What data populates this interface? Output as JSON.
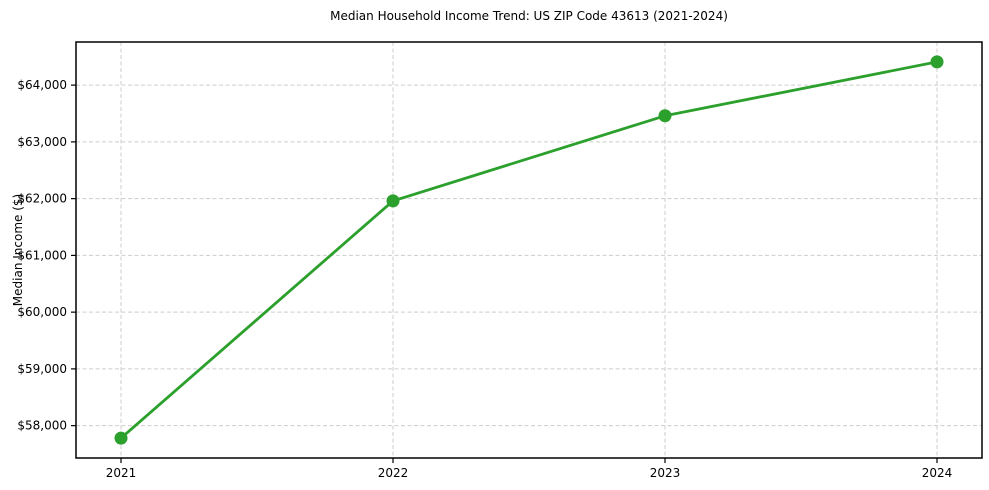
{
  "chart_data": {
    "type": "line",
    "title": "Median Household Income Trend: US ZIP Code 43613 (2021-2024)",
    "xlabel": "",
    "ylabel": "Median Income ($)",
    "categories": [
      "2021",
      "2022",
      "2023",
      "2024"
    ],
    "series": [
      {
        "name": "Median Household Income",
        "values": [
          57780,
          61960,
          63460,
          64410
        ]
      }
    ],
    "ytick_values": [
      58000,
      59000,
      60000,
      61000,
      62000,
      63000,
      64000
    ],
    "ytick_labels": [
      "$58,000",
      "$59,000",
      "$60,000",
      "$61,000",
      "$62,000",
      "$63,000",
      "$64,000"
    ],
    "ylim": [
      57430,
      64760
    ],
    "grid": "dashed-both-axes",
    "legend_position": "none",
    "colors": {
      "line": "#2ca02c",
      "marker": "#2ca02c",
      "grid": "#cdcdcd",
      "axis": "#000000",
      "text": "#000000",
      "background": "#ffffff"
    }
  }
}
